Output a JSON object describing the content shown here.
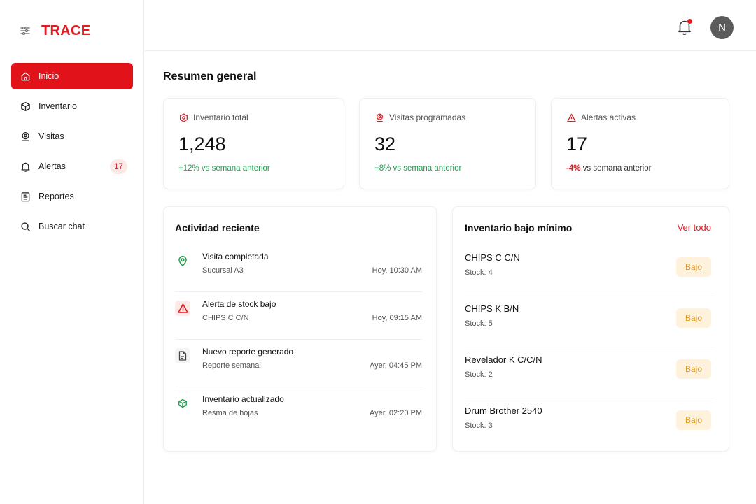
{
  "app": {
    "brand": "TRACE"
  },
  "sidebar": {
    "items": [
      {
        "label": "Inicio",
        "icon": "home-icon",
        "active": true
      },
      {
        "label": "Inventario",
        "icon": "box-icon"
      },
      {
        "label": "Visitas",
        "icon": "visit-icon"
      },
      {
        "label": "Alertas",
        "icon": "bell-icon",
        "badge": "17"
      },
      {
        "label": "Reportes",
        "icon": "report-icon"
      },
      {
        "label": "Buscar chat",
        "icon": "search-icon"
      }
    ]
  },
  "topbar": {
    "avatar_initial": "N",
    "notification_dot": true
  },
  "main": {
    "title": "Resumen general",
    "stats": [
      {
        "label": "Inventario total",
        "value": "1,248",
        "change": "+12% vs semana anterior"
      },
      {
        "label": "Visitas programadas",
        "value": "32",
        "change": "+8% vs semana anterior"
      },
      {
        "label": "Alertas activas",
        "value": "17",
        "change_value": "-4%",
        "change_rest": " vs semana anterior"
      }
    ],
    "activity": {
      "title": "Actividad reciente",
      "items": [
        {
          "title": "Visita completada",
          "sub": "Sucursal A3",
          "time": "Hoy, 10:30 AM",
          "icon": "location-pin-icon"
        },
        {
          "title": "Alerta de stock bajo",
          "sub": "CHIPS C C/N",
          "time": "Hoy, 09:15 AM",
          "icon": "warning-icon"
        },
        {
          "title": "Nuevo reporte generado",
          "sub": "Reporte semanal",
          "time": "Ayer, 04:45 PM",
          "icon": "document-icon"
        },
        {
          "title": "Inventario actualizado",
          "sub": "Resma de hojas",
          "time": "Ayer, 02:20 PM",
          "icon": "cube-icon"
        }
      ]
    },
    "low_inventory": {
      "title": "Inventario bajo mínimo",
      "see_all": "Ver todo",
      "items": [
        {
          "name": "CHIPS C C/N",
          "stock": "Stock: 4",
          "tag": "Bajo"
        },
        {
          "name": "CHIPS K B/N",
          "stock": "Stock: 5",
          "tag": "Bajo"
        },
        {
          "name": "Revelador K C/C/N",
          "stock": "Stock: 2",
          "tag": "Bajo"
        },
        {
          "name": "Drum Brother 2540",
          "stock": "Stock: 3",
          "tag": "Bajo"
        }
      ]
    }
  },
  "colors": {
    "accent": "#e2121b",
    "positive": "#1e9b4b",
    "warning_tag_bg": "#fff2dc",
    "warning_tag_text": "#e29a1f"
  }
}
